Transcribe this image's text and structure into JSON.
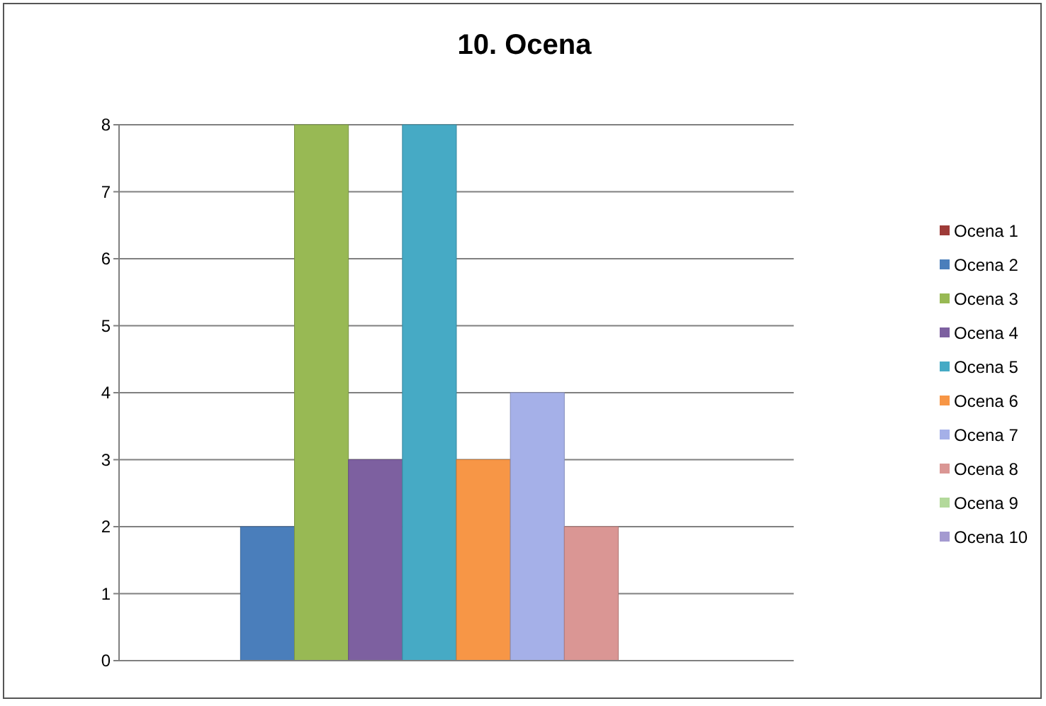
{
  "chart_data": {
    "type": "bar",
    "title": "10. Ocena",
    "categories": [
      null
    ],
    "series": [
      {
        "name": "Ocena 1",
        "color": "#9e3b38",
        "values": [
          0
        ]
      },
      {
        "name": "Ocena 2",
        "color": "#4a7ebb",
        "values": [
          2
        ]
      },
      {
        "name": "Ocena 3",
        "color": "#98b954",
        "values": [
          8
        ]
      },
      {
        "name": "Ocena 4",
        "color": "#7d60a0",
        "values": [
          3
        ]
      },
      {
        "name": "Ocena 5",
        "color": "#46aac5",
        "values": [
          8
        ]
      },
      {
        "name": "Ocena 6",
        "color": "#f79646",
        "values": [
          3
        ]
      },
      {
        "name": "Ocena 7",
        "color": "#a5b0e8",
        "values": [
          4
        ]
      },
      {
        "name": "Ocena 8",
        "color": "#da9694",
        "values": [
          2
        ]
      },
      {
        "name": "Ocena 9",
        "color": "#b3d99b",
        "values": [
          0
        ]
      },
      {
        "name": "Ocena 10",
        "color": "#a49ad0",
        "values": [
          0
        ]
      }
    ],
    "ylim": [
      0,
      8
    ],
    "yticks": [
      0,
      1,
      2,
      3,
      4,
      5,
      6,
      7,
      8
    ],
    "grid": "y",
    "legend": "right"
  }
}
